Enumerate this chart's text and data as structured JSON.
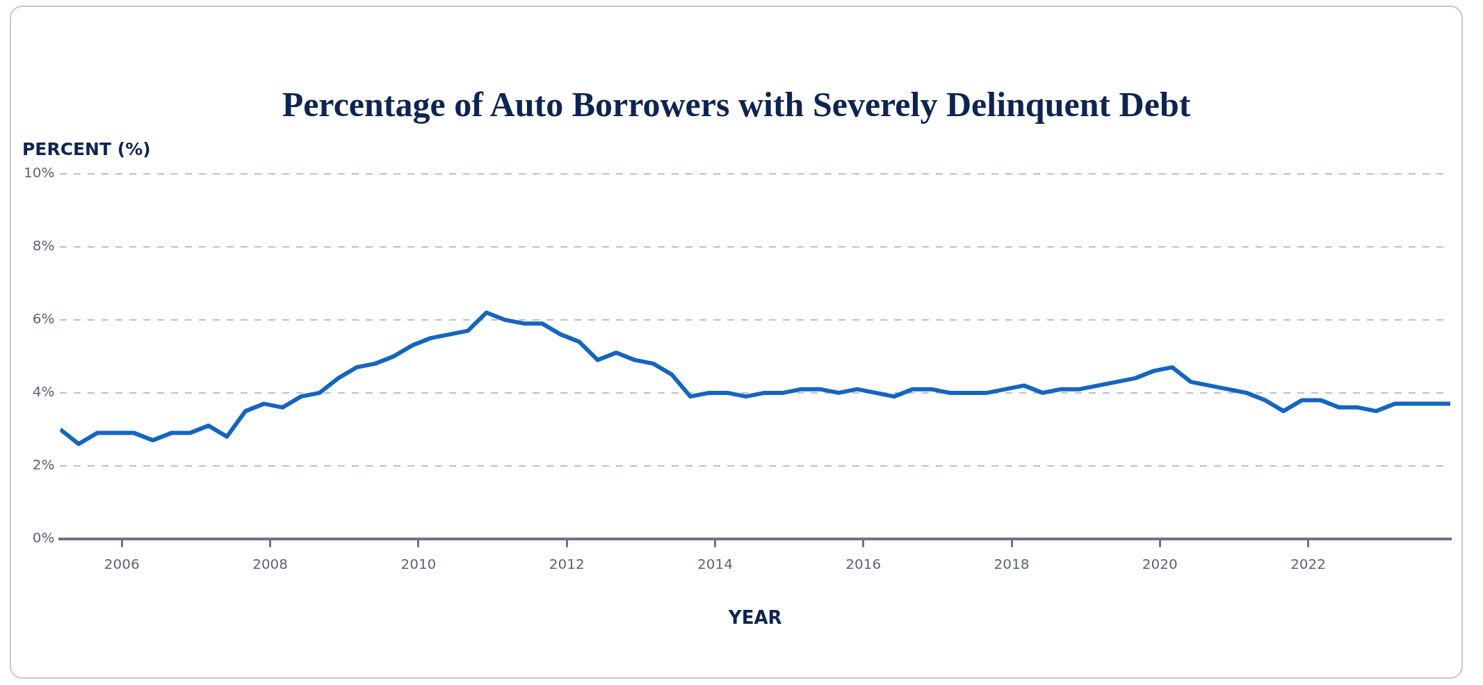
{
  "chart_data": {
    "type": "line",
    "title": "Percentage of Auto Borrowers with Severely Delinquent Debt",
    "xlabel": "YEAR",
    "ylabel": "PERCENT (%)",
    "x": [
      "2005-03",
      "2005-06",
      "2005-09",
      "2005-12",
      "2006-03",
      "2006-06",
      "2006-09",
      "2006-12",
      "2007-03",
      "2007-06",
      "2007-09",
      "2007-12",
      "2008-03",
      "2008-06",
      "2008-09",
      "2008-12",
      "2009-03",
      "2009-06",
      "2009-09",
      "2009-12",
      "2010-03",
      "2010-06",
      "2010-09",
      "2010-12",
      "2011-03",
      "2011-06",
      "2011-09",
      "2011-12",
      "2012-03",
      "2012-06",
      "2012-09",
      "2012-12",
      "2013-03",
      "2013-06",
      "2013-09",
      "2013-12",
      "2014-03",
      "2014-06",
      "2014-09",
      "2014-12",
      "2015-03",
      "2015-06",
      "2015-09",
      "2015-12",
      "2016-03",
      "2016-06",
      "2016-09",
      "2016-12",
      "2017-03",
      "2017-06",
      "2017-09",
      "2017-12",
      "2018-03",
      "2018-06",
      "2018-09",
      "2018-12",
      "2019-03",
      "2019-06",
      "2019-09",
      "2019-12",
      "2020-03",
      "2020-06",
      "2020-09",
      "2020-12",
      "2021-03",
      "2021-06",
      "2021-09",
      "2021-12",
      "2022-03",
      "2022-06",
      "2022-09",
      "2022-12",
      "2023-03",
      "2023-06",
      "2023-09",
      "2023-12"
    ],
    "series": [
      {
        "color": "#1565c0",
        "values": [
          3.0,
          2.6,
          2.9,
          2.9,
          2.9,
          2.7,
          2.9,
          2.9,
          3.1,
          2.8,
          3.5,
          3.7,
          3.6,
          3.9,
          4.0,
          4.4,
          4.7,
          4.8,
          5.0,
          5.3,
          5.5,
          5.6,
          5.7,
          6.2,
          6.0,
          5.9,
          5.9,
          5.6,
          5.4,
          4.9,
          5.1,
          4.9,
          4.8,
          4.5,
          3.9,
          4.0,
          4.0,
          3.9,
          4.0,
          4.0,
          4.1,
          4.1,
          4.0,
          4.1,
          4.0,
          3.9,
          4.1,
          4.1,
          4.0,
          4.0,
          4.0,
          4.1,
          4.2,
          4.0,
          4.1,
          4.1,
          4.2,
          4.3,
          4.4,
          4.6,
          4.7,
          4.3,
          4.2,
          4.1,
          4.0,
          3.8,
          3.5,
          3.8,
          3.8,
          3.6,
          3.6,
          3.5,
          3.7,
          3.7,
          3.7,
          3.7
        ]
      }
    ],
    "xlim": [
      "2005-03",
      "2023-12"
    ],
    "xticks": [
      "2006",
      "2008",
      "2010",
      "2012",
      "2014",
      "2016",
      "2018",
      "2020",
      "2022"
    ],
    "ylim": [
      0,
      10
    ],
    "yticks": [
      {
        "value": 0,
        "label": "0%"
      },
      {
        "value": 2,
        "label": "2%"
      },
      {
        "value": 4,
        "label": "4%"
      },
      {
        "value": 6,
        "label": "6%"
      },
      {
        "value": 8,
        "label": "8%"
      },
      {
        "value": 10,
        "label": "10%"
      }
    ],
    "grid": "y",
    "line_style": "solid"
  }
}
